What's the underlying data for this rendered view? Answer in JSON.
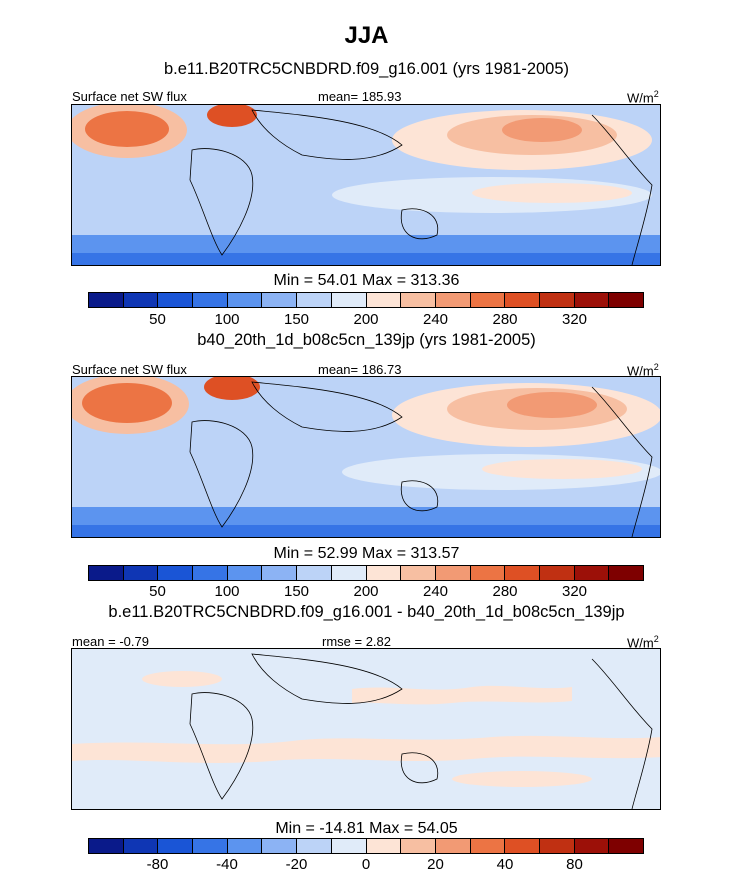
{
  "figure": {
    "title": "JJA",
    "units_label": "W/m",
    "units_exp": "2"
  },
  "chart_data": [
    {
      "type": "heatmap",
      "title": "b.e11.B20TRC5CNBDRD.f09_g16.001 (yrs 1981-2005)",
      "variable": "Surface net SW flux",
      "stat_label": "mean= 185.93",
      "mean": 185.93,
      "min_max_label": "Min =  54.01 Max = 313.36",
      "min": 54.01,
      "max": 313.36,
      "colorbar": {
        "levels": [
          25,
          50,
          75,
          100,
          125,
          150,
          175,
          200,
          220,
          240,
          260,
          280,
          300,
          320,
          340
        ],
        "tick_labels": [
          "50",
          "100",
          "150",
          "200",
          "240",
          "280",
          "320"
        ],
        "colors": [
          "#0a1a8a",
          "#0f36b4",
          "#1a55d6",
          "#3674e6",
          "#5c94ef",
          "#8cb3f4",
          "#bcd3f7",
          "#e0ebf9",
          "#fde4d6",
          "#f7bfa2",
          "#f29a74",
          "#ec7444",
          "#de5024",
          "#c03012",
          "#9c1008",
          "#7e0000"
        ]
      }
    },
    {
      "type": "heatmap",
      "title": "b40_20th_1d_b08c5cn_139jp (yrs 1981-2005)",
      "variable": "Surface net SW flux",
      "stat_label": "mean= 186.73",
      "mean": 186.73,
      "min_max_label": "Min =  52.99 Max = 313.57",
      "min": 52.99,
      "max": 313.57,
      "colorbar": {
        "levels": [
          25,
          50,
          75,
          100,
          125,
          150,
          175,
          200,
          220,
          240,
          260,
          280,
          300,
          320,
          340
        ],
        "tick_labels": [
          "50",
          "100",
          "150",
          "200",
          "240",
          "280",
          "320"
        ],
        "colors": [
          "#0a1a8a",
          "#0f36b4",
          "#1a55d6",
          "#3674e6",
          "#5c94ef",
          "#8cb3f4",
          "#bcd3f7",
          "#e0ebf9",
          "#fde4d6",
          "#f7bfa2",
          "#f29a74",
          "#ec7444",
          "#de5024",
          "#c03012",
          "#9c1008",
          "#7e0000"
        ]
      }
    },
    {
      "type": "heatmap",
      "title": "b.e11.B20TRC5CNBDRD.f09_g16.001 - b40_20th_1d_b08c5cn_139jp",
      "stat_label": "mean =  -0.79",
      "mean": -0.79,
      "rmse_label": "rmse =   2.82",
      "rmse": 2.82,
      "min_max_label": "Min = -14.81 Max =  54.05",
      "min": -14.81,
      "max": 54.05,
      "colorbar": {
        "levels": [
          -100,
          -80,
          -60,
          -40,
          -30,
          -20,
          -10,
          0,
          10,
          20,
          30,
          40,
          60,
          80,
          100
        ],
        "tick_labels": [
          "-80",
          "-40",
          "-20",
          "0",
          "20",
          "40",
          "80"
        ],
        "colors": [
          "#0a1a8a",
          "#0f36b4",
          "#1a55d6",
          "#3674e6",
          "#5c94ef",
          "#8cb3f4",
          "#bcd3f7",
          "#e0ebf9",
          "#fde4d6",
          "#f7bfa2",
          "#f29a74",
          "#ec7444",
          "#de5024",
          "#c03012",
          "#9c1008",
          "#7e0000"
        ]
      }
    }
  ]
}
